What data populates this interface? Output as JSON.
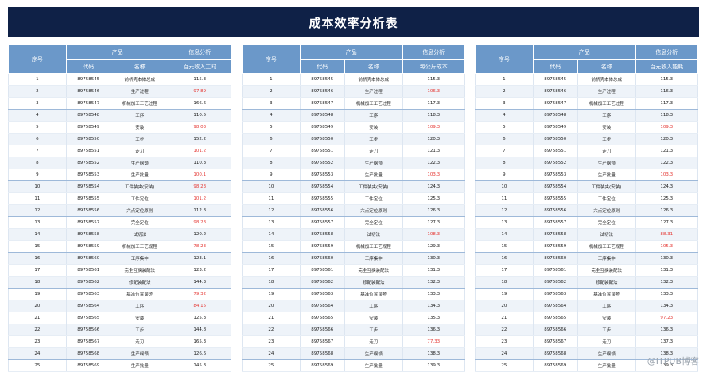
{
  "title": "成本效率分析表",
  "watermark": "@ITPUB博客",
  "colors": {
    "header_bg": "#0f2147",
    "table_header": "#6b98c9",
    "highlight": "#e53935"
  },
  "tables": [
    {
      "headers": {
        "seq": "序号",
        "product": "产品",
        "info": "信息分析",
        "code": "代码",
        "name": "名称",
        "metric": "百元收入工时"
      },
      "rows": [
        {
          "seq": "1",
          "code": "89758545",
          "name": "前桥壳本体总成",
          "value": "115.3",
          "highlight": false
        },
        {
          "seq": "2",
          "code": "89758546",
          "name": "生产过程",
          "value": "97.89",
          "highlight": true
        },
        {
          "seq": "3",
          "code": "89758547",
          "name": "机械加工工艺过程",
          "value": "166.6",
          "highlight": false
        },
        {
          "seq": "4",
          "code": "89758548",
          "name": "工序",
          "value": "110.5",
          "highlight": false
        },
        {
          "seq": "5",
          "code": "89758549",
          "name": "安装",
          "value": "98.03",
          "highlight": true
        },
        {
          "seq": "6",
          "code": "89758550",
          "name": "工步",
          "value": "152.2",
          "highlight": false
        },
        {
          "seq": "7",
          "code": "89758551",
          "name": "走刀",
          "value": "101.2",
          "highlight": true
        },
        {
          "seq": "8",
          "code": "89758552",
          "name": "生产纲领",
          "value": "110.3",
          "highlight": false
        },
        {
          "seq": "9",
          "code": "89758553",
          "name": "生产批量",
          "value": "100.1",
          "highlight": true
        },
        {
          "seq": "10",
          "code": "89758554",
          "name": "工件装夹(安装)",
          "value": "98.23",
          "highlight": true
        },
        {
          "seq": "11",
          "code": "89758555",
          "name": "工件定位",
          "value": "101.2",
          "highlight": true
        },
        {
          "seq": "12",
          "code": "89758556",
          "name": "六点定位原则",
          "value": "112.3",
          "highlight": false
        },
        {
          "seq": "13",
          "code": "89758557",
          "name": "完全定位",
          "value": "98.23",
          "highlight": true
        },
        {
          "seq": "14",
          "code": "89758558",
          "name": "试切法",
          "value": "120.2",
          "highlight": false
        },
        {
          "seq": "15",
          "code": "89758559",
          "name": "机械加工工艺规程",
          "value": "78.23",
          "highlight": true
        },
        {
          "seq": "16",
          "code": "89758560",
          "name": "工序集中",
          "value": "123.1",
          "highlight": false
        },
        {
          "seq": "17",
          "code": "89758561",
          "name": "完全互换装配法",
          "value": "123.2",
          "highlight": false
        },
        {
          "seq": "18",
          "code": "89758562",
          "name": "修配装配法",
          "value": "144.3",
          "highlight": false
        },
        {
          "seq": "19",
          "code": "89758563",
          "name": "基准位置误差",
          "value": "79.32",
          "highlight": true
        },
        {
          "seq": "20",
          "code": "89758564",
          "name": "工序",
          "value": "84.15",
          "highlight": true
        },
        {
          "seq": "21",
          "code": "89758565",
          "name": "安装",
          "value": "125.3",
          "highlight": false
        },
        {
          "seq": "22",
          "code": "89758566",
          "name": "工步",
          "value": "144.8",
          "highlight": false
        },
        {
          "seq": "23",
          "code": "89758567",
          "name": "走刀",
          "value": "165.3",
          "highlight": false
        },
        {
          "seq": "24",
          "code": "89758568",
          "name": "生产纲领",
          "value": "126.6",
          "highlight": false
        },
        {
          "seq": "25",
          "code": "89758569",
          "name": "生产批量",
          "value": "145.3",
          "highlight": false
        }
      ]
    },
    {
      "headers": {
        "seq": "序号",
        "product": "产品",
        "info": "信息分析",
        "code": "代码",
        "name": "名称",
        "metric": "每公斤成本"
      },
      "rows": [
        {
          "seq": "1",
          "code": "89758545",
          "name": "前桥壳本体总成",
          "value": "115.3",
          "highlight": false
        },
        {
          "seq": "2",
          "code": "89758546",
          "name": "生产过程",
          "value": "106.3",
          "highlight": true
        },
        {
          "seq": "3",
          "code": "89758547",
          "name": "机械加工工艺过程",
          "value": "117.3",
          "highlight": false
        },
        {
          "seq": "4",
          "code": "89758548",
          "name": "工序",
          "value": "118.3",
          "highlight": false
        },
        {
          "seq": "5",
          "code": "89758549",
          "name": "安装",
          "value": "109.3",
          "highlight": true
        },
        {
          "seq": "6",
          "code": "89758550",
          "name": "工步",
          "value": "120.3",
          "highlight": false
        },
        {
          "seq": "7",
          "code": "89758551",
          "name": "走刀",
          "value": "121.3",
          "highlight": false
        },
        {
          "seq": "8",
          "code": "89758552",
          "name": "生产纲领",
          "value": "122.3",
          "highlight": false
        },
        {
          "seq": "9",
          "code": "89758553",
          "name": "生产批量",
          "value": "103.3",
          "highlight": true
        },
        {
          "seq": "10",
          "code": "89758554",
          "name": "工件装夹(安装)",
          "value": "124.3",
          "highlight": false
        },
        {
          "seq": "11",
          "code": "89758555",
          "name": "工件定位",
          "value": "125.3",
          "highlight": false
        },
        {
          "seq": "12",
          "code": "89758556",
          "name": "六点定位原则",
          "value": "126.3",
          "highlight": false
        },
        {
          "seq": "13",
          "code": "89758557",
          "name": "完全定位",
          "value": "127.3",
          "highlight": false
        },
        {
          "seq": "14",
          "code": "89758558",
          "name": "试切法",
          "value": "108.3",
          "highlight": true
        },
        {
          "seq": "15",
          "code": "89758559",
          "name": "机械加工工艺规程",
          "value": "129.3",
          "highlight": false
        },
        {
          "seq": "16",
          "code": "89758560",
          "name": "工序集中",
          "value": "130.3",
          "highlight": false
        },
        {
          "seq": "17",
          "code": "89758561",
          "name": "完全互换装配法",
          "value": "131.3",
          "highlight": false
        },
        {
          "seq": "18",
          "code": "89758562",
          "name": "修配装配法",
          "value": "132.3",
          "highlight": false
        },
        {
          "seq": "19",
          "code": "89758563",
          "name": "基准位置误差",
          "value": "133.3",
          "highlight": false
        },
        {
          "seq": "20",
          "code": "89758564",
          "name": "工序",
          "value": "134.3",
          "highlight": false
        },
        {
          "seq": "21",
          "code": "89758565",
          "name": "安装",
          "value": "135.3",
          "highlight": false
        },
        {
          "seq": "22",
          "code": "89758566",
          "name": "工步",
          "value": "136.3",
          "highlight": false
        },
        {
          "seq": "23",
          "code": "89758567",
          "name": "走刀",
          "value": "77.33",
          "highlight": true
        },
        {
          "seq": "24",
          "code": "89758568",
          "name": "生产纲领",
          "value": "138.3",
          "highlight": false
        },
        {
          "seq": "25",
          "code": "89758569",
          "name": "生产批量",
          "value": "139.3",
          "highlight": false
        }
      ]
    },
    {
      "headers": {
        "seq": "序号",
        "product": "产品",
        "info": "信息分析",
        "code": "代码",
        "name": "名称",
        "metric": "百元收入能耗"
      },
      "rows": [
        {
          "seq": "1",
          "code": "89758545",
          "name": "前桥壳本体总成",
          "value": "115.3",
          "highlight": false
        },
        {
          "seq": "2",
          "code": "89758546",
          "name": "生产过程",
          "value": "116.3",
          "highlight": false
        },
        {
          "seq": "3",
          "code": "89758547",
          "name": "机械加工工艺过程",
          "value": "117.3",
          "highlight": false
        },
        {
          "seq": "4",
          "code": "89758548",
          "name": "工序",
          "value": "118.3",
          "highlight": false
        },
        {
          "seq": "5",
          "code": "89758549",
          "name": "安装",
          "value": "109.3",
          "highlight": true
        },
        {
          "seq": "6",
          "code": "89758550",
          "name": "工步",
          "value": "120.3",
          "highlight": false
        },
        {
          "seq": "7",
          "code": "89758551",
          "name": "走刀",
          "value": "121.3",
          "highlight": false
        },
        {
          "seq": "8",
          "code": "89758552",
          "name": "生产纲领",
          "value": "122.3",
          "highlight": false
        },
        {
          "seq": "9",
          "code": "89758553",
          "name": "生产批量",
          "value": "103.3",
          "highlight": true
        },
        {
          "seq": "10",
          "code": "89758554",
          "name": "工件装夹(安装)",
          "value": "124.3",
          "highlight": false
        },
        {
          "seq": "11",
          "code": "89758555",
          "name": "工件定位",
          "value": "125.3",
          "highlight": false
        },
        {
          "seq": "12",
          "code": "89758556",
          "name": "六点定位原则",
          "value": "126.3",
          "highlight": false
        },
        {
          "seq": "13",
          "code": "89758557",
          "name": "完全定位",
          "value": "127.3",
          "highlight": false
        },
        {
          "seq": "14",
          "code": "89758558",
          "name": "试切法",
          "value": "88.31",
          "highlight": true
        },
        {
          "seq": "15",
          "code": "89758559",
          "name": "机械加工工艺规程",
          "value": "105.3",
          "highlight": true
        },
        {
          "seq": "16",
          "code": "89758560",
          "name": "工序集中",
          "value": "130.3",
          "highlight": false
        },
        {
          "seq": "17",
          "code": "89758561",
          "name": "完全互换装配法",
          "value": "131.3",
          "highlight": false
        },
        {
          "seq": "18",
          "code": "89758562",
          "name": "修配装配法",
          "value": "132.3",
          "highlight": false
        },
        {
          "seq": "19",
          "code": "89758563",
          "name": "基准位置误差",
          "value": "133.3",
          "highlight": false
        },
        {
          "seq": "20",
          "code": "89758564",
          "name": "工序",
          "value": "134.3",
          "highlight": false
        },
        {
          "seq": "21",
          "code": "89758565",
          "name": "安装",
          "value": "97.23",
          "highlight": true
        },
        {
          "seq": "22",
          "code": "89758566",
          "name": "工步",
          "value": "136.3",
          "highlight": false
        },
        {
          "seq": "23",
          "code": "89758567",
          "name": "走刀",
          "value": "137.3",
          "highlight": false
        },
        {
          "seq": "24",
          "code": "89758568",
          "name": "生产纲领",
          "value": "138.3",
          "highlight": false
        },
        {
          "seq": "25",
          "code": "89758569",
          "name": "生产批量",
          "value": "139.3",
          "highlight": false
        }
      ]
    }
  ]
}
